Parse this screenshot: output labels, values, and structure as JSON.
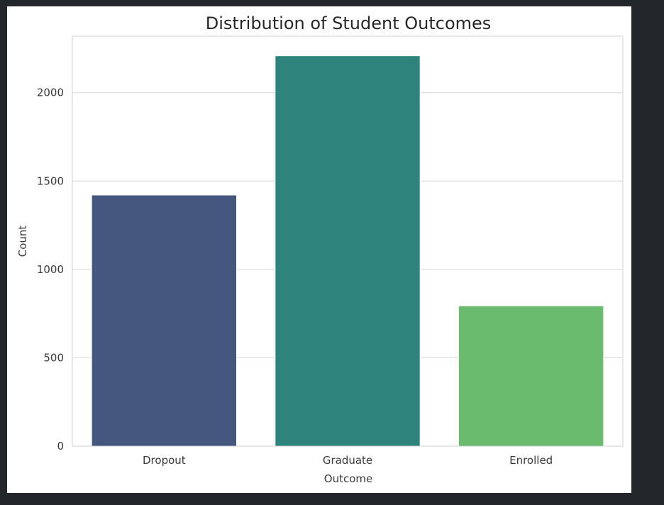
{
  "chart_data": {
    "type": "bar",
    "title": "Distribution of Student Outcomes",
    "xlabel": "Outcome",
    "ylabel": "Count",
    "categories": [
      "Dropout",
      "Graduate",
      "Enrolled"
    ],
    "values": [
      1421,
      2209,
      794
    ],
    "colors": [
      "#46577f",
      "#2e847c",
      "#6abb6d"
    ],
    "ylim": [
      0,
      2320
    ],
    "yticks": [
      0,
      500,
      1000,
      1500,
      2000
    ],
    "grid": "horizontal",
    "legend": "none"
  }
}
